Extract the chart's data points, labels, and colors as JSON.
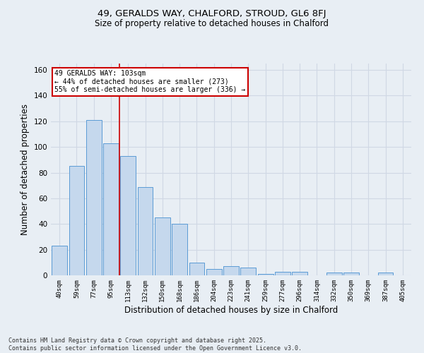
{
  "title1": "49, GERALDS WAY, CHALFORD, STROUD, GL6 8FJ",
  "title2": "Size of property relative to detached houses in Chalford",
  "xlabel": "Distribution of detached houses by size in Chalford",
  "ylabel": "Number of detached properties",
  "categories": [
    "40sqm",
    "59sqm",
    "77sqm",
    "95sqm",
    "113sqm",
    "132sqm",
    "150sqm",
    "168sqm",
    "186sqm",
    "204sqm",
    "223sqm",
    "241sqm",
    "259sqm",
    "277sqm",
    "296sqm",
    "314sqm",
    "332sqm",
    "350sqm",
    "369sqm",
    "387sqm",
    "405sqm"
  ],
  "values": [
    23,
    85,
    121,
    103,
    93,
    69,
    45,
    40,
    10,
    5,
    7,
    6,
    1,
    3,
    3,
    0,
    2,
    2,
    0,
    2,
    0
  ],
  "bar_color": "#c5d8ed",
  "bar_edge_color": "#5b9bd5",
  "grid_color": "#d0d8e4",
  "background_color": "#e8eef4",
  "vline_color": "#cc0000",
  "annotation_line1": "49 GERALDS WAY: 103sqm",
  "annotation_line2": "← 44% of detached houses are smaller (273)",
  "annotation_line3": "55% of semi-detached houses are larger (336) →",
  "annotation_box_color": "#ffffff",
  "annotation_box_edge_color": "#cc0000",
  "footer_text": "Contains HM Land Registry data © Crown copyright and database right 2025.\nContains public sector information licensed under the Open Government Licence v3.0.",
  "ylim": [
    0,
    165
  ],
  "yticks": [
    0,
    20,
    40,
    60,
    80,
    100,
    120,
    140,
    160
  ]
}
